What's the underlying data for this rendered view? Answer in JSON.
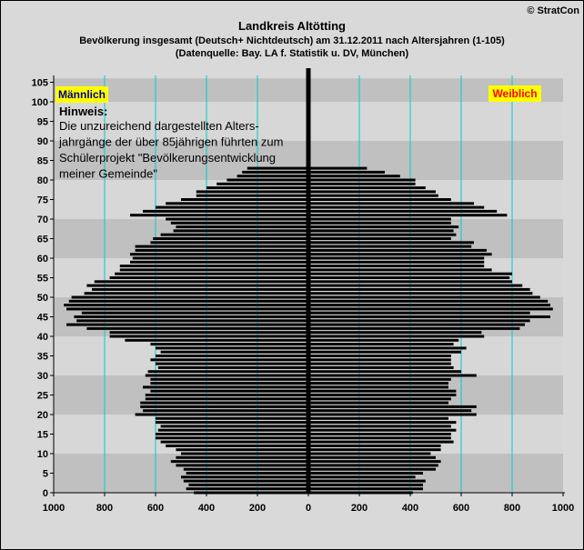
{
  "header": {
    "title": "Landkreis Altötting",
    "subtitle": "Bevölkerung  insgesamt (Deutsch+ Nichtdeutsch) am 31.12.2011 nach Altersjahren (1-105)",
    "source": "(Datenquelle: Bay. LA f. Statistik u. DV, München)",
    "copyright": "© StratCon"
  },
  "chart_data": {
    "type": "bar",
    "orientation": "horizontal-population-pyramid",
    "title": "Landkreis Altötting",
    "y_ticks": [
      0,
      5,
      10,
      15,
      20,
      25,
      30,
      35,
      40,
      45,
      50,
      55,
      60,
      65,
      70,
      75,
      80,
      85,
      90,
      95,
      100,
      105
    ],
    "x_ticks": [
      "1000",
      "800",
      "600",
      "400",
      "200",
      "0",
      "200",
      "400",
      "600",
      "800",
      "1000"
    ],
    "xlim": [
      -1000,
      1000
    ],
    "ylim": [
      0,
      105
    ],
    "grid": "vertical lines every 200",
    "legend_left": "Männlich",
    "legend_right": "Weiblich",
    "note": {
      "heading": "Hinweis:",
      "lines": [
        "Die unzureichend dargestellten Alters-",
        "jahrgänge der über 85jährigen führten zum",
        "Schülerprojekt \"Bevölkerungsentwicklung",
        "meiner Gemeinde\""
      ]
    },
    "colors": {
      "bar": "#000000",
      "grid": "#00cccc",
      "center": "#000000",
      "legend_bg": "#ffff00",
      "legend_male_text": "#00008b",
      "legend_female_text": "#ff0000"
    },
    "ages": [
      0,
      1,
      2,
      3,
      4,
      5,
      6,
      7,
      8,
      9,
      10,
      11,
      12,
      13,
      14,
      15,
      16,
      17,
      18,
      19,
      20,
      21,
      22,
      23,
      24,
      25,
      26,
      27,
      28,
      29,
      30,
      31,
      32,
      33,
      34,
      35,
      36,
      37,
      38,
      39,
      40,
      41,
      42,
      43,
      44,
      45,
      46,
      47,
      48,
      49,
      50,
      51,
      52,
      53,
      54,
      55,
      56,
      57,
      58,
      59,
      60,
      61,
      62,
      63,
      64,
      65,
      66,
      67,
      68,
      69,
      70,
      71,
      72,
      73,
      74,
      75,
      76,
      77,
      78,
      79,
      80,
      81,
      82,
      83
    ],
    "male": [
      450,
      480,
      470,
      490,
      500,
      480,
      490,
      520,
      540,
      520,
      500,
      520,
      560,
      580,
      600,
      600,
      590,
      580,
      600,
      600,
      680,
      650,
      660,
      660,
      640,
      640,
      620,
      650,
      620,
      620,
      640,
      630,
      590,
      600,
      620,
      600,
      580,
      600,
      620,
      720,
      780,
      780,
      870,
      950,
      910,
      920,
      890,
      950,
      960,
      940,
      930,
      880,
      850,
      870,
      840,
      780,
      760,
      740,
      740,
      700,
      690,
      700,
      680,
      680,
      620,
      610,
      580,
      530,
      520,
      540,
      560,
      700,
      650,
      600,
      560,
      500,
      440,
      440,
      400,
      360,
      320,
      280,
      260,
      240
    ],
    "female": [
      410,
      450,
      450,
      460,
      420,
      450,
      500,
      510,
      520,
      500,
      480,
      520,
      520,
      570,
      560,
      560,
      580,
      560,
      580,
      550,
      660,
      640,
      660,
      550,
      560,
      580,
      580,
      550,
      550,
      560,
      660,
      600,
      570,
      560,
      560,
      560,
      600,
      620,
      570,
      590,
      690,
      680,
      830,
      850,
      870,
      950,
      870,
      960,
      950,
      940,
      910,
      880,
      870,
      840,
      800,
      790,
      800,
      720,
      690,
      690,
      690,
      720,
      700,
      640,
      650,
      560,
      580,
      570,
      590,
      560,
      560,
      780,
      740,
      690,
      650,
      560,
      510,
      500,
      460,
      420,
      420,
      360,
      300,
      230
    ]
  }
}
